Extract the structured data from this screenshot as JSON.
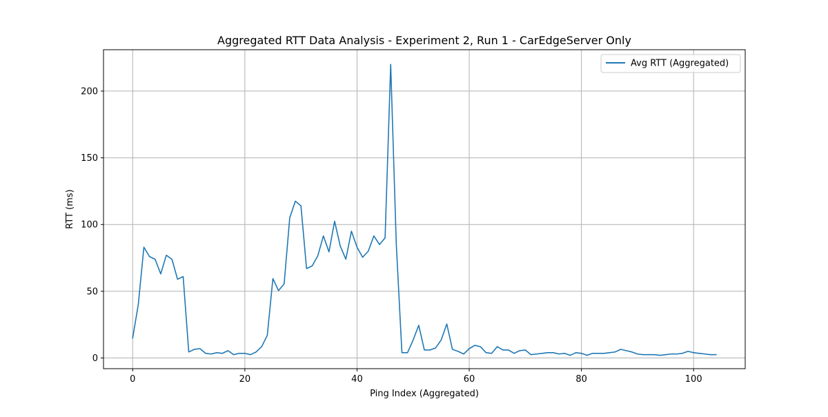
{
  "chart_data": {
    "type": "line",
    "title": "Aggregated RTT Data Analysis - Experiment 2, Run 1 - CarEdgeServer Only",
    "xlabel": "Ping Index (Aggregated)",
    "ylabel": "RTT (ms)",
    "xlim": [
      -5.2,
      109.2
    ],
    "ylim": [
      -8,
      231
    ],
    "xticks": [
      0,
      20,
      40,
      60,
      80,
      100
    ],
    "yticks": [
      0,
      50,
      100,
      150,
      200
    ],
    "grid": true,
    "legend_position": "top-right",
    "series": [
      {
        "name": "Avg RTT (Aggregated)",
        "color": "#1f77b4",
        "x": [
          0,
          1,
          2,
          3,
          4,
          5,
          6,
          7,
          8,
          9,
          10,
          11,
          12,
          13,
          14,
          15,
          16,
          17,
          18,
          19,
          20,
          21,
          22,
          23,
          24,
          25,
          26,
          27,
          28,
          29,
          30,
          31,
          32,
          33,
          34,
          35,
          36,
          37,
          38,
          39,
          40,
          41,
          42,
          43,
          44,
          45,
          46,
          47,
          48,
          49,
          50,
          51,
          52,
          53,
          54,
          55,
          56,
          57,
          58,
          59,
          60,
          61,
          62,
          63,
          64,
          65,
          66,
          67,
          68,
          69,
          70,
          71,
          72,
          73,
          74,
          75,
          76,
          77,
          78,
          79,
          80,
          81,
          82,
          83,
          84,
          85,
          86,
          87,
          88,
          89,
          90,
          91,
          92,
          93,
          94,
          95,
          96,
          97,
          98,
          99,
          100,
          101,
          102,
          103,
          104
        ],
        "y": [
          15,
          40,
          83,
          76,
          74,
          63,
          77,
          74,
          59,
          61,
          4.5,
          6.5,
          7,
          3.5,
          3,
          4,
          3.5,
          5.5,
          2.5,
          3.5,
          3.5,
          2.5,
          4.5,
          8.5,
          17,
          59.5,
          50.5,
          55.5,
          105,
          117.5,
          114,
          67,
          69,
          76.5,
          91.5,
          79.5,
          102.5,
          84,
          74,
          95,
          83,
          75.5,
          80,
          91.5,
          85,
          90,
          220,
          85,
          4,
          4,
          13.5,
          24.5,
          6,
          6,
          7.5,
          13.5,
          25.5,
          6.5,
          5,
          3,
          7,
          9.5,
          8.5,
          4,
          3.5,
          8.5,
          6,
          6,
          3.5,
          5.5,
          6,
          2.5,
          3,
          3.5,
          4,
          4,
          3,
          3.5,
          2,
          4,
          3.5,
          2,
          3.5,
          3.5,
          3.5,
          4,
          4.5,
          6.5,
          5.5,
          4.5,
          3,
          2.5,
          2.5,
          2.5,
          2,
          2.5,
          3,
          3,
          3.5,
          5,
          4,
          3.5,
          3,
          2.5,
          2.5
        ]
      }
    ]
  }
}
